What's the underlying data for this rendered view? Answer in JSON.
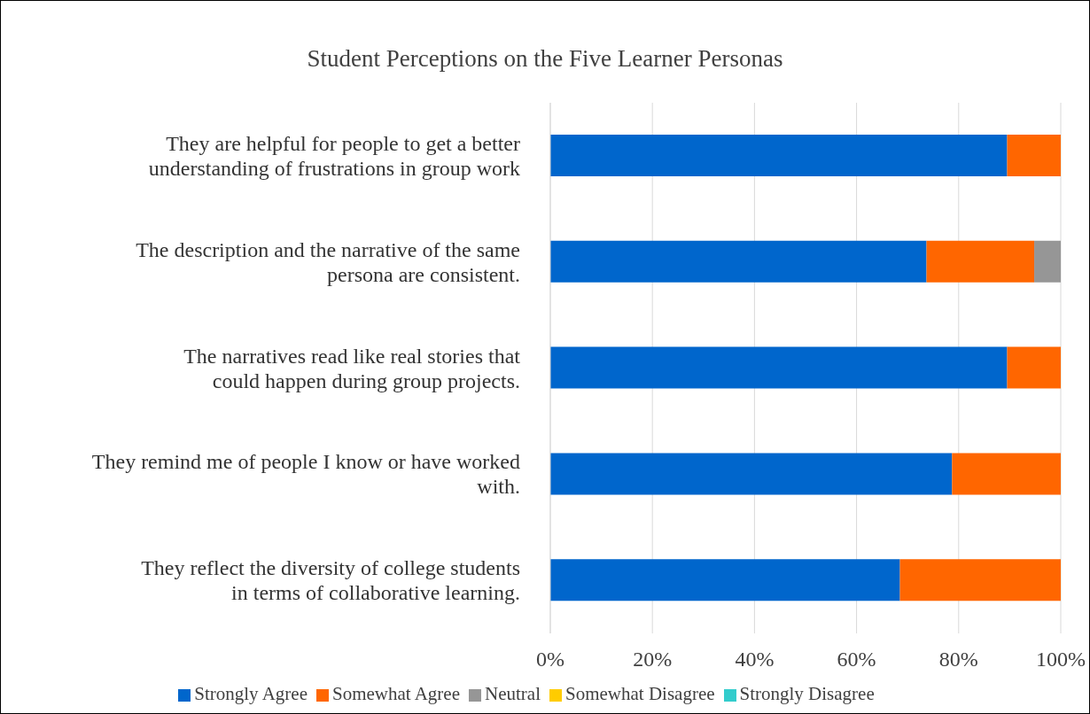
{
  "chart_data": {
    "type": "bar",
    "orientation": "horizontal",
    "stacked": true,
    "title": "Student Perceptions on the Five Learner Personas",
    "categories": [
      "They are helpful for people to get a better understanding of frustrations in group work",
      "The description and the narrative of the same persona are consistent.",
      "The narratives read like real stories that could happen during group projects.",
      "They remind me of people I know or have worked with.",
      "They reflect the diversity of college students in terms of collaborative learning."
    ],
    "series": [
      {
        "name": "Strongly Agree",
        "color": "#0066cc",
        "values": [
          89.5,
          73.7,
          89.5,
          78.7,
          68.5
        ]
      },
      {
        "name": "Somewhat Agree",
        "color": "#ff6600",
        "values": [
          10.5,
          21.1,
          10.5,
          21.3,
          31.5
        ]
      },
      {
        "name": "Neutral",
        "color": "#969696",
        "values": [
          0,
          5.2,
          0,
          0,
          0
        ]
      },
      {
        "name": "Somewhat Disagree",
        "color": "#ffcc00",
        "values": [
          0,
          0,
          0,
          0,
          0
        ]
      },
      {
        "name": "Strongly Disagree",
        "color": "#33cccc",
        "values": [
          0,
          0,
          0,
          0,
          0
        ]
      }
    ],
    "xlim": [
      0,
      100
    ],
    "xticks": [
      {
        "value": 0,
        "label": "0%"
      },
      {
        "value": 20,
        "label": "20%"
      },
      {
        "value": 40,
        "label": "40%"
      },
      {
        "value": 60,
        "label": "60%"
      },
      {
        "value": 80,
        "label": "80%"
      },
      {
        "value": 100,
        "label": "100%"
      }
    ],
    "grid": "x",
    "legend": "bottom"
  }
}
